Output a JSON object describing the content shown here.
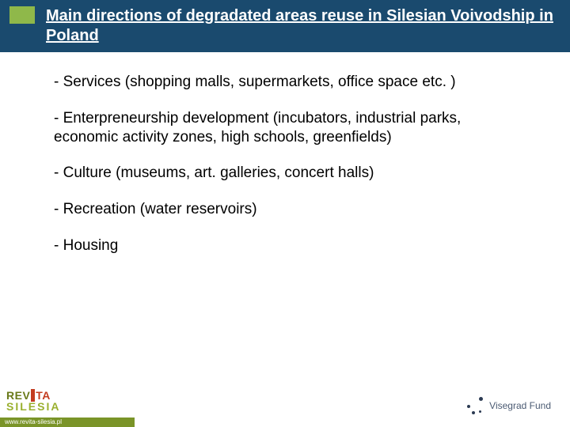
{
  "header": {
    "title": "Main directions of degradated areas reuse in Silesian Voivodship in Poland",
    "band_color": "#1a4a6e",
    "square_color": "#8fb84a"
  },
  "bullets": [
    "- Services (shopping malls, supermarkets, office space etc. )",
    "- Enterpreneurship development (incubators, industrial parks, economic activity zones, high schools, greenfields)",
    "- Culture (museums, art. galleries, concert halls)",
    "- Recreation (water reservoirs)",
    "- Housing"
  ],
  "footer": {
    "logo_rev": "REV",
    "logo_ta": "TA",
    "logo_silesia": "SILESIA",
    "url": "www.revita-silesia.pl",
    "right_label": "Visegrad Fund"
  },
  "colors": {
    "text": "#000000",
    "rev": "#6a7a1a",
    "ta": "#c33b1f",
    "silesia": "#9ab02f",
    "urlbar": "#7a9428",
    "vf": "#4a5a72"
  }
}
